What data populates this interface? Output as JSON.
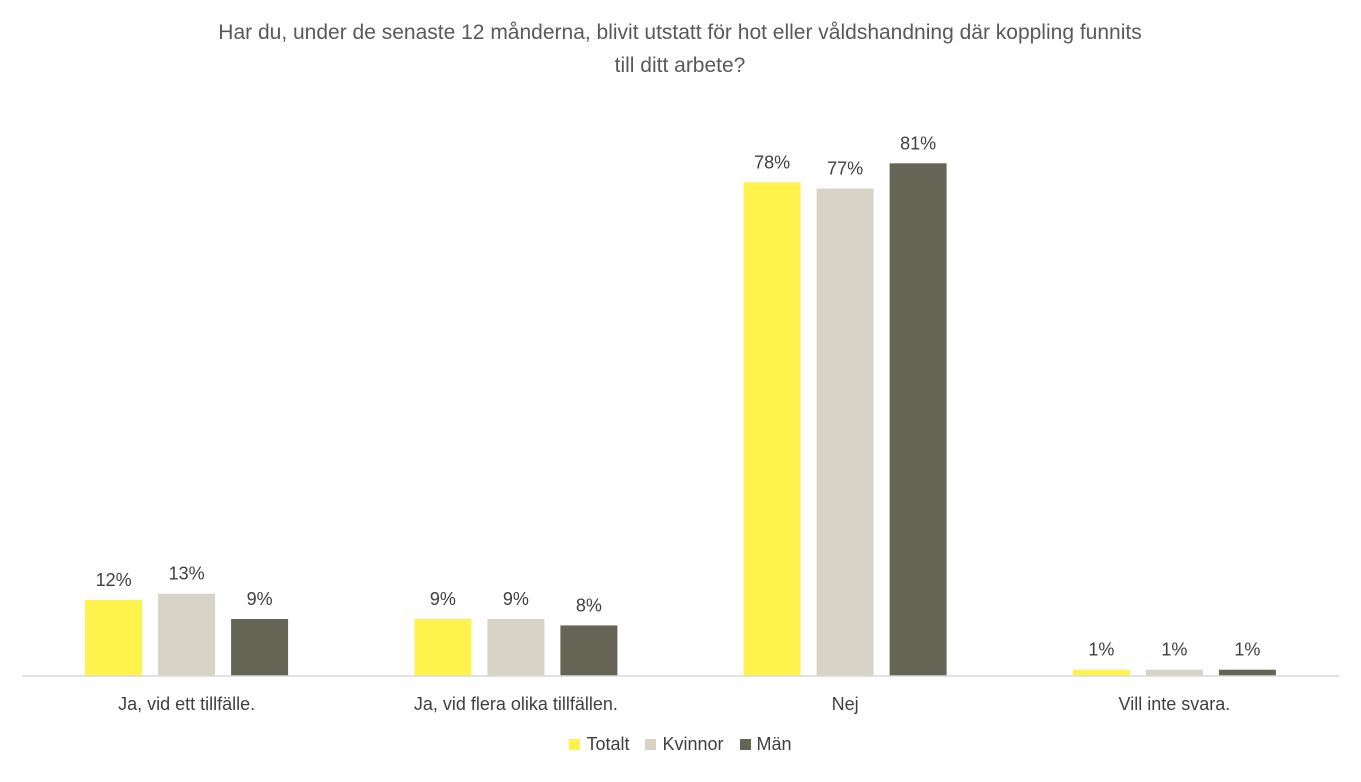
{
  "chart_data": {
    "type": "bar",
    "title_lines": [
      "Har du, under de senaste 12 månderna, blivit utstatt för hot eller våldshandning där koppling funnits",
      "till ditt arbete?"
    ],
    "categories": [
      "Ja, vid ett tillfälle.",
      "Ja, vid flera olika tillfällen.",
      "Nej",
      "Vill inte svara."
    ],
    "series": [
      {
        "name": "Totalt",
        "color": "#FFF24D",
        "values": [
          12,
          9,
          78,
          1
        ],
        "labels": [
          "12%",
          "9%",
          "78%",
          "1%"
        ]
      },
      {
        "name": "Kvinnor",
        "color": "#D7D4C7",
        "values": [
          13,
          9,
          77,
          1
        ],
        "labels": [
          "13%",
          "9%",
          "77%",
          "1%"
        ]
      },
      {
        "name": "Män",
        "color": "#656556",
        "values": [
          9,
          8,
          81,
          1
        ],
        "labels": [
          "9%",
          "8%",
          "81%",
          "1%"
        ]
      }
    ],
    "value_format": "percent",
    "ylim": [
      0,
      85
    ],
    "grid": false,
    "legend_position": "bottom"
  }
}
